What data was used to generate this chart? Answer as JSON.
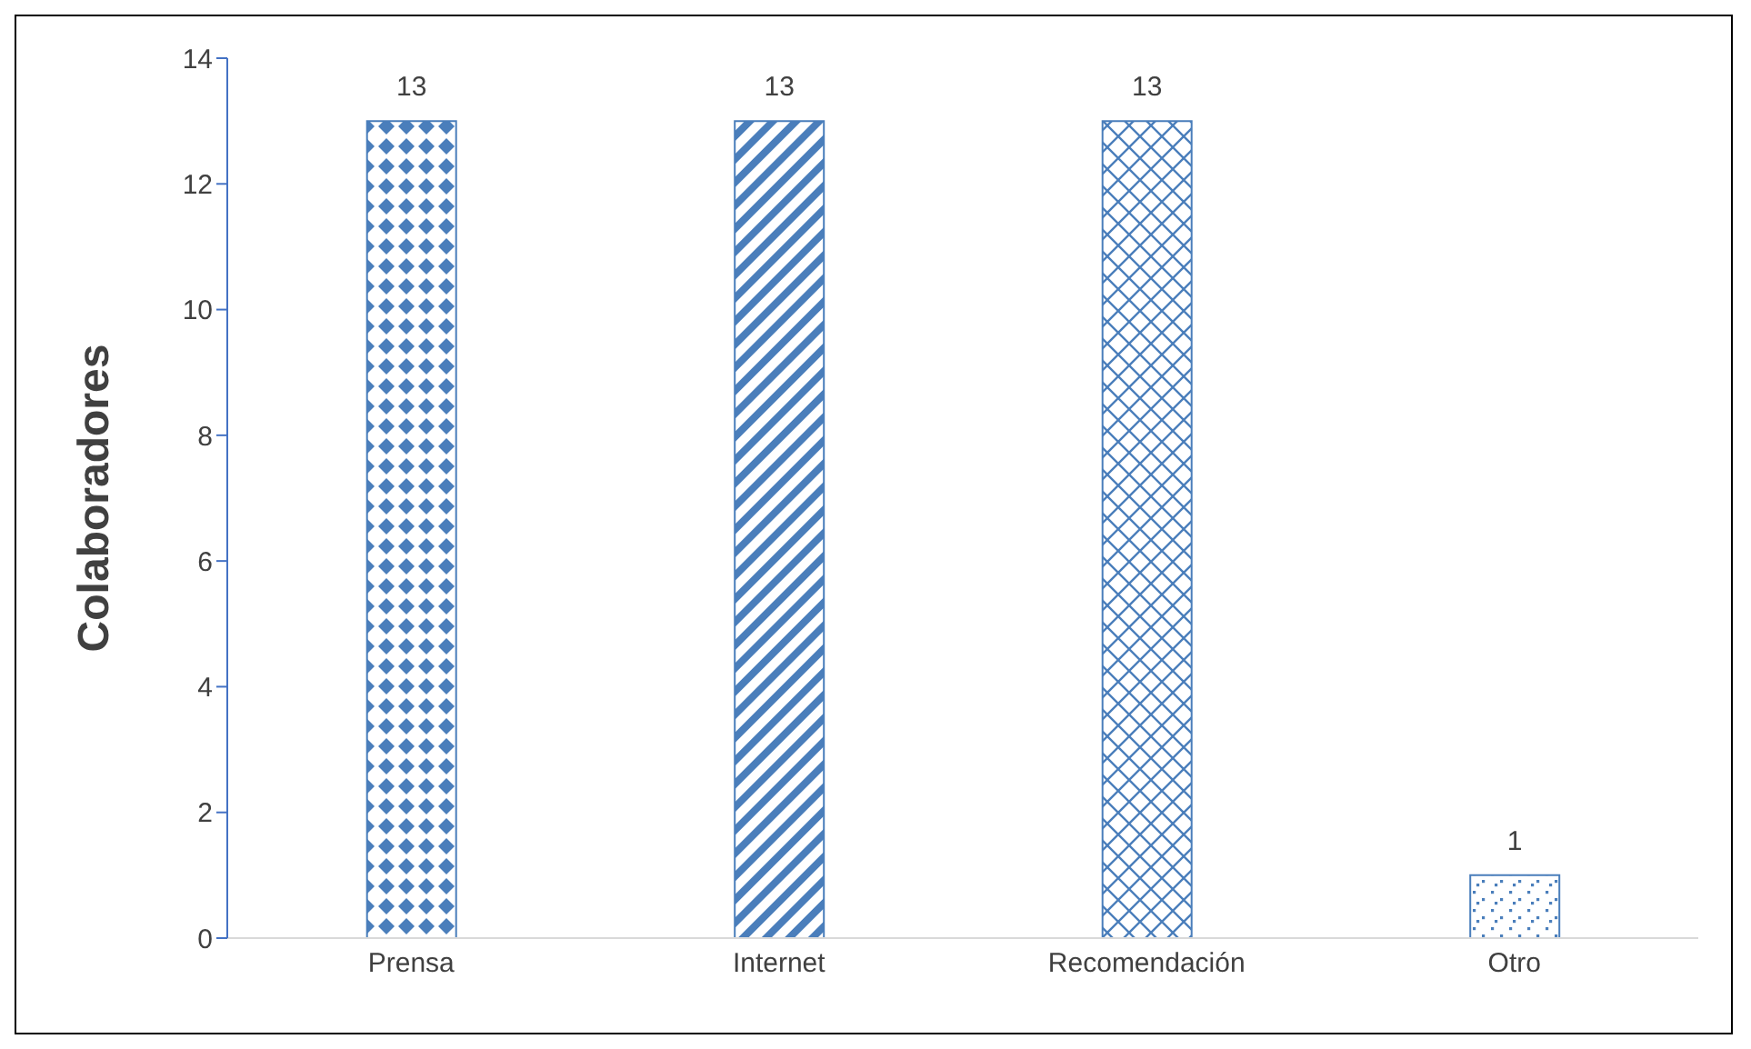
{
  "chart_data": {
    "type": "bar",
    "ylabel": "Colaboradores",
    "categories": [
      "Prensa",
      "Internet",
      "Recomendación",
      "Otro"
    ],
    "values": [
      13,
      13,
      13,
      1
    ],
    "colors": [
      "#4a7ebb",
      "#4a7ebb",
      "#4a7ebb",
      "#4a7ebb"
    ],
    "ylim": [
      0,
      14
    ],
    "yticks": [
      0,
      2,
      4,
      6,
      8,
      10,
      12,
      14
    ],
    "grid": false,
    "legend": false,
    "data_labels": true
  }
}
